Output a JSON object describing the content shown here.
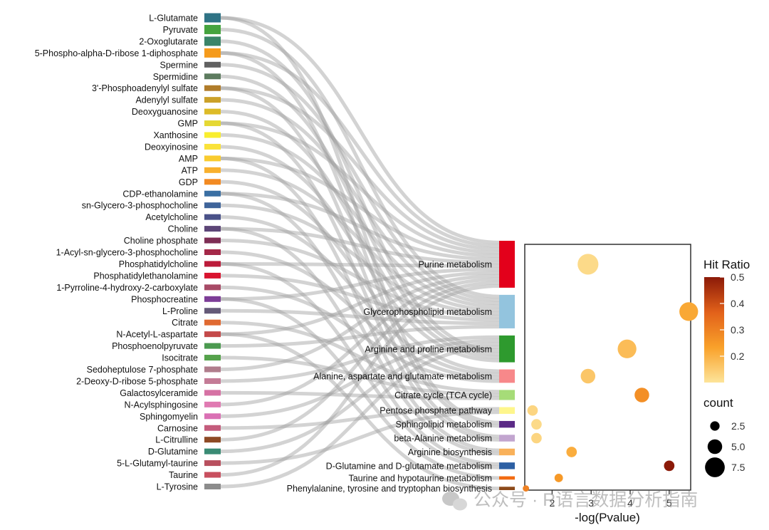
{
  "chart_data": [
    {
      "type": "sankey",
      "metabolites": [
        {
          "name": "L-Glutamate",
          "color": "#2F7385"
        },
        {
          "name": "Pyruvate",
          "color": "#45A33E"
        },
        {
          "name": "2-Oxoglutarate",
          "color": "#3A8468"
        },
        {
          "name": "5-Phospho-alpha-D-ribose 1-diphosphate",
          "color": "#F59B1C"
        },
        {
          "name": "Spermine",
          "color": "#616161"
        },
        {
          "name": "Spermidine",
          "color": "#5D7B5F"
        },
        {
          "name": "3'-Phosphoadenylyl sulfate",
          "color": "#B07C2A"
        },
        {
          "name": "Adenylyl sulfate",
          "color": "#CBA129"
        },
        {
          "name": "Deoxyguanosine",
          "color": "#DDBB28"
        },
        {
          "name": "GMP",
          "color": "#E5D833"
        },
        {
          "name": "Xanthosine",
          "color": "#F9EE2E"
        },
        {
          "name": "Deoxyinosine",
          "color": "#FAE23A"
        },
        {
          "name": "AMP",
          "color": "#F9CB2F"
        },
        {
          "name": "ATP",
          "color": "#F8B02E"
        },
        {
          "name": "GDP",
          "color": "#F28A22"
        },
        {
          "name": "CDP-ethanolamine",
          "color": "#3A6FA3"
        },
        {
          "name": "sn-Glycero-3-phosphocholine",
          "color": "#3F649A"
        },
        {
          "name": "Acetylcholine",
          "color": "#4A5289"
        },
        {
          "name": "Choline",
          "color": "#5C4577"
        },
        {
          "name": "Choline phosphate",
          "color": "#7E2E55"
        },
        {
          "name": "1-Acyl-sn-glycero-3-phosphocholine",
          "color": "#A42848"
        },
        {
          "name": "Phosphatidylcholine",
          "color": "#BC1B3A"
        },
        {
          "name": "Phosphatidylethanolamine",
          "color": "#D9142F"
        },
        {
          "name": "1-Pyrroline-4-hydroxy-2-carboxylate",
          "color": "#A74A66"
        },
        {
          "name": "Phosphocreatine",
          "color": "#7D3D97"
        },
        {
          "name": "L-Proline",
          "color": "#655A78"
        },
        {
          "name": "Citrate",
          "color": "#E06A31"
        },
        {
          "name": "N-Acetyl-L-aspartate",
          "color": "#C44A4A"
        },
        {
          "name": "Phosphoenolpyruvate",
          "color": "#4B9A50"
        },
        {
          "name": "Isocitrate",
          "color": "#55A24B"
        },
        {
          "name": "Sedoheptulose 7-phosphate",
          "color": "#B07D8C"
        },
        {
          "name": "2-Deoxy-D-ribose 5-phosphate",
          "color": "#C47B96"
        },
        {
          "name": "Galactosylceramide",
          "color": "#D672A4"
        },
        {
          "name": "N-Acylsphingosine",
          "color": "#E07AB2"
        },
        {
          "name": "Sphingomyelin",
          "color": "#DA70B4"
        },
        {
          "name": "Carnosine",
          "color": "#C45C7C"
        },
        {
          "name": "L-Citrulline",
          "color": "#8E4A25"
        },
        {
          "name": "D-Glutamine",
          "color": "#3A8B74"
        },
        {
          "name": "5-L-Glutamyl-taurine",
          "color": "#B8505E"
        },
        {
          "name": "Taurine",
          "color": "#C8505F"
        },
        {
          "name": "L-Tyrosine",
          "color": "#8C8C8C"
        }
      ],
      "pathways": [
        {
          "name": "Purine metabolism",
          "color": "#E3001B",
          "size": 14
        },
        {
          "name": "Glycerophospholipid metabolism",
          "color": "#93C4DE",
          "size": 10
        },
        {
          "name": "Arginine and proline metabolism",
          "color": "#2E9A2E",
          "size": 8
        },
        {
          "name": "Alanine, aspartate and glutamate metabolism",
          "color": "#F7888A",
          "size": 4
        },
        {
          "name": "Citrate cycle (TCA cycle)",
          "color": "#A6DC78",
          "size": 3
        },
        {
          "name": "Pentose phosphate pathway",
          "color": "#FEF68C",
          "size": 2
        },
        {
          "name": "Sphingolipid metabolism",
          "color": "#5B2A86",
          "size": 2
        },
        {
          "name": "beta-Alanine metabolism",
          "color": "#C2A5CF",
          "size": 2
        },
        {
          "name": "Arginine biosynthesis",
          "color": "#F9B15A",
          "size": 2
        },
        {
          "name": "D-Glutamine and D-glutamate metabolism",
          "color": "#2C5FA3",
          "size": 2
        },
        {
          "name": "Taurine and hypotaurine metabolism",
          "color": "#F26B12",
          "size": 1
        },
        {
          "name": "Phenylalanine, tyrosine and tryptophan biosynthesis",
          "color": "#8C4A1A",
          "size": 1
        }
      ]
    },
    {
      "type": "scatter",
      "xlabel": "-log(Pvalue)",
      "ylabel": "",
      "xlim": [
        1.3,
        5.55
      ],
      "x_ticks": [
        2,
        3,
        4,
        5
      ],
      "points": [
        {
          "pathway": "Purine metabolism",
          "x": 2.92,
          "hit_ratio": 0.12,
          "count": 8
        },
        {
          "pathway": "Glycerophospholipid metabolism",
          "x": 5.5,
          "hit_ratio": 0.22,
          "count": 7
        },
        {
          "pathway": "Arginine and proline metabolism",
          "x": 3.92,
          "hit_ratio": 0.18,
          "count": 7
        },
        {
          "pathway": "Alanine, aspartate and glutamate metabolism",
          "x": 2.92,
          "hit_ratio": 0.16,
          "count": 5
        },
        {
          "pathway": "Citrate cycle (TCA cycle)",
          "x": 4.3,
          "hit_ratio": 0.27,
          "count": 5
        },
        {
          "pathway": "Pentose phosphate pathway",
          "x": 1.5,
          "hit_ratio": 0.13,
          "count": 3
        },
        {
          "pathway": "Sphingolipid metabolism",
          "x": 1.6,
          "hit_ratio": 0.12,
          "count": 3
        },
        {
          "pathway": "beta-Alanine metabolism",
          "x": 1.6,
          "hit_ratio": 0.13,
          "count": 3
        },
        {
          "pathway": "Arginine biosynthesis",
          "x": 2.5,
          "hit_ratio": 0.21,
          "count": 3
        },
        {
          "pathway": "D-Glutamine and D-glutamate metabolism",
          "x": 5.0,
          "hit_ratio": 0.5,
          "count": 3
        },
        {
          "pathway": "Taurine and hypotaurine metabolism",
          "x": 2.17,
          "hit_ratio": 0.25,
          "count": 2
        },
        {
          "pathway": "Phenylalanine, tyrosine and tryptophan biosynthesis",
          "x": 1.33,
          "hit_ratio": 0.3,
          "count": 1
        }
      ]
    }
  ],
  "legend": {
    "color_title": "Hit Ratio",
    "color_scale": [
      "#FDE49A",
      "#F9A12A",
      "#E2611A",
      "#8B1A08"
    ],
    "color_ticks": [
      0.5,
      0.4,
      0.3,
      0.2
    ],
    "color_min": 0.1,
    "color_max": 0.5,
    "size_title": "count",
    "size_ticks": [
      2.5,
      5.0,
      7.5
    ],
    "size_tick_labels": [
      "2.5",
      "5.0",
      "7.5"
    ]
  },
  "watermark": "公众号 · R语言数据分析指南"
}
